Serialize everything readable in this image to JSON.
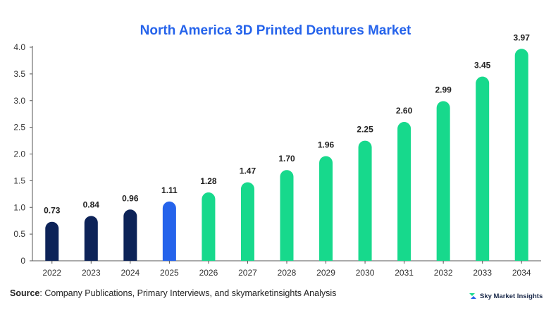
{
  "colors": {
    "title": "#2563eb",
    "historical": "#0d2358",
    "current": "#2563eb",
    "forecast": "#17d98c",
    "axis": "#555555",
    "grid": "#dddddd"
  },
  "chart_data": {
    "type": "bar",
    "title": "North America 3D Printed Dentures Market",
    "categories": [
      "2022",
      "2023",
      "2024",
      "2025",
      "2026",
      "2027",
      "2028",
      "2029",
      "2030",
      "2031",
      "2032",
      "2033",
      "2034"
    ],
    "values": [
      0.73,
      0.84,
      0.96,
      1.11,
      1.28,
      1.47,
      1.7,
      1.96,
      2.25,
      2.6,
      2.99,
      3.45,
      3.97
    ],
    "value_labels": [
      "0.73",
      "0.84",
      "0.96",
      "1.11",
      "1.28",
      "1.47",
      "1.70",
      "1.96",
      "2.25",
      "2.60",
      "2.99",
      "3.45",
      "3.97"
    ],
    "bar_groups": [
      "historical",
      "historical",
      "historical",
      "current",
      "forecast",
      "forecast",
      "forecast",
      "forecast",
      "forecast",
      "forecast",
      "forecast",
      "forecast",
      "forecast"
    ],
    "ylim": [
      0,
      4.0
    ],
    "yticks": [
      "0",
      "0.5",
      "1.0",
      "1.5",
      "2.0",
      "2.5",
      "3.0",
      "3.5",
      "4.0"
    ],
    "ytick_values": [
      0,
      0.5,
      1.0,
      1.5,
      2.0,
      2.5,
      3.0,
      3.5,
      4.0
    ],
    "xlabel": "",
    "ylabel": "",
    "grid": false,
    "legend": "none"
  },
  "footer": {
    "source_label": "Source",
    "source_text": ": Company Publications, Primary Interviews, and skymarketinsights Analysis",
    "brand_name": "Sky Market Insights",
    "brand_icon": "sky-market-insights-logo-icon"
  }
}
